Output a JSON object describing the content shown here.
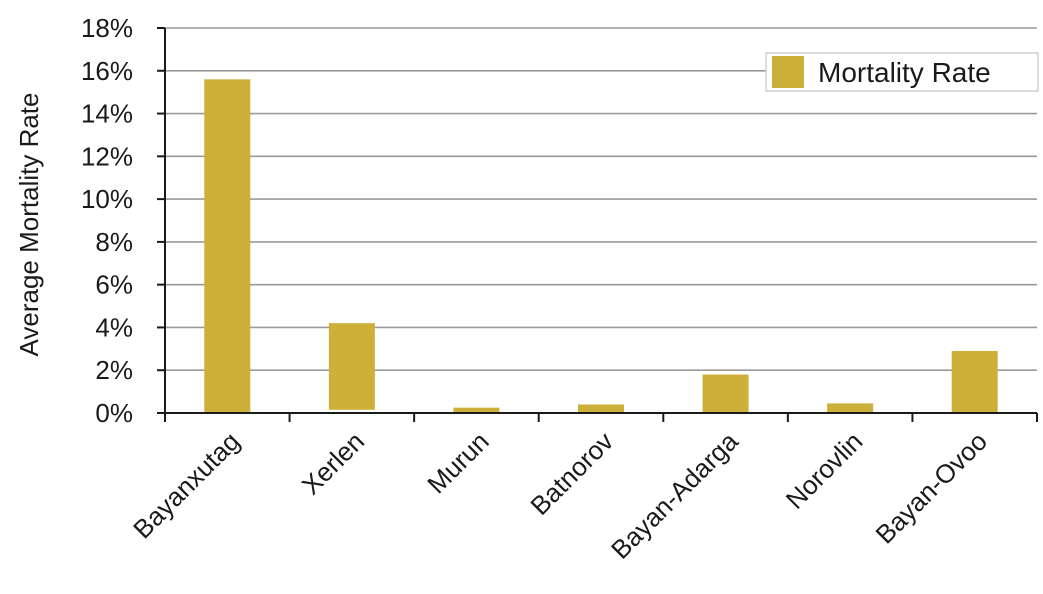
{
  "chart_data": {
    "type": "bar",
    "categories": [
      "Bayanxutag",
      "Xerlen",
      "Murun",
      "Batnorov",
      "Bayan-Adarga",
      "Norovlin",
      "Bayan-Ovoo"
    ],
    "series": [
      {
        "name": "Mortality Rate",
        "color": "#CDB03A",
        "values": [
          15.6,
          4.2,
          0.25,
          0.4,
          1.8,
          0.45,
          2.9
        ],
        "baseline": [
          0,
          0.15,
          0,
          0,
          0,
          0,
          0
        ]
      }
    ],
    "ylabel": "Average Mortality Rate",
    "xlabel": "",
    "ylim": [
      0,
      18
    ],
    "yticks": [
      0,
      2,
      4,
      6,
      8,
      10,
      12,
      14,
      16,
      18
    ],
    "ytick_format": "percent",
    "grid": true,
    "legend_position": "top-right"
  }
}
